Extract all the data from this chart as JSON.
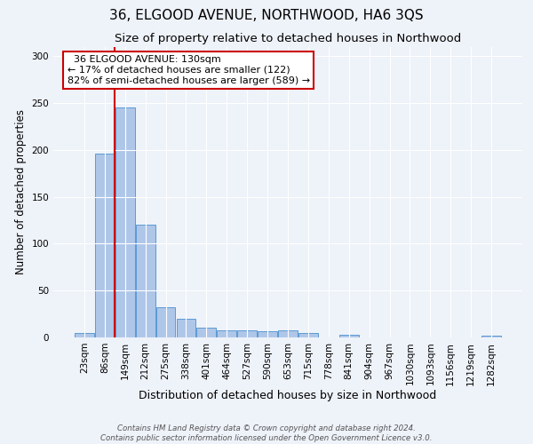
{
  "title": "36, ELGOOD AVENUE, NORTHWOOD, HA6 3QS",
  "subtitle": "Size of property relative to detached houses in Northwood",
  "xlabel": "Distribution of detached houses by size in Northwood",
  "ylabel": "Number of detached properties",
  "footer_line1": "Contains HM Land Registry data © Crown copyright and database right 2024.",
  "footer_line2": "Contains public sector information licensed under the Open Government Licence v3.0.",
  "categories": [
    "23sqm",
    "86sqm",
    "149sqm",
    "212sqm",
    "275sqm",
    "338sqm",
    "401sqm",
    "464sqm",
    "527sqm",
    "590sqm",
    "653sqm",
    "715sqm",
    "778sqm",
    "841sqm",
    "904sqm",
    "967sqm",
    "1030sqm",
    "1093sqm",
    "1156sqm",
    "1219sqm",
    "1282sqm"
  ],
  "values": [
    5,
    196,
    245,
    120,
    32,
    20,
    10,
    8,
    8,
    7,
    8,
    5,
    0,
    3,
    0,
    0,
    0,
    0,
    0,
    0,
    2
  ],
  "bar_color": "#aec6e8",
  "bar_edge_color": "#5b9bd5",
  "red_line_x": 1.5,
  "red_line_color": "#cc0000",
  "annotation_text": "  36 ELGOOD AVENUE: 130sqm\n← 17% of detached houses are smaller (122)\n82% of semi-detached houses are larger (589) →",
  "annotation_box_color": "#ffffff",
  "annotation_box_edge_color": "#cc0000",
  "ylim": [
    0,
    310
  ],
  "yticks": [
    0,
    50,
    100,
    150,
    200,
    250,
    300
  ],
  "background_color": "#eef2f9",
  "plot_bg_color": "#eef2f9",
  "title_fontsize": 11,
  "subtitle_fontsize": 9.5,
  "xlabel_fontsize": 9,
  "ylabel_fontsize": 8.5,
  "tick_fontsize": 7.5,
  "annotation_fontsize": 8
}
